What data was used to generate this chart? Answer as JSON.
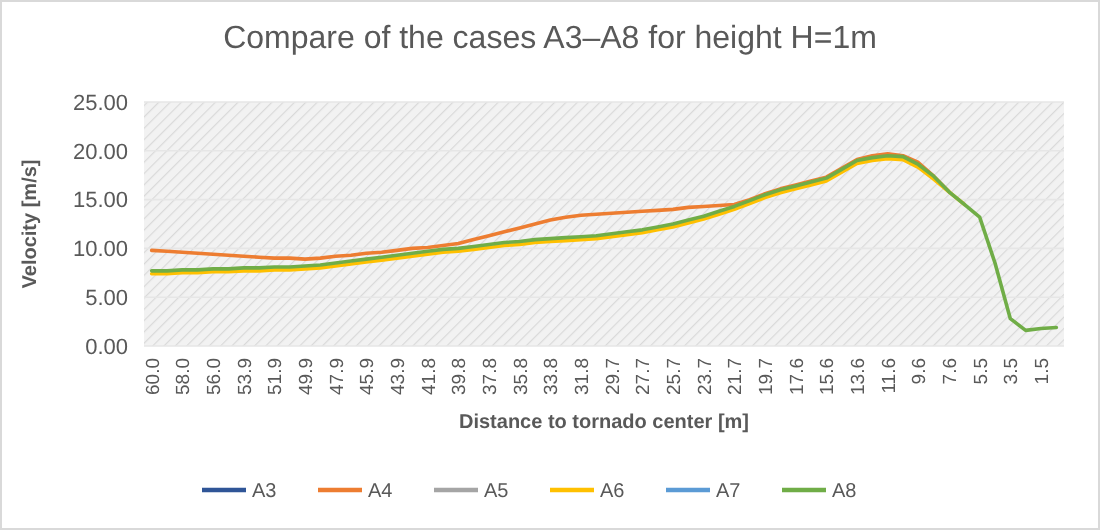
{
  "chart_data": {
    "type": "line",
    "title": "Compare of the cases A3–A8 for height H=1m",
    "xlabel": "Distance to tornado center [m]",
    "ylabel": "Velocity [m/s]",
    "categories": [
      "60.0",
      null,
      "58.0",
      null,
      "56.0",
      null,
      "53.9",
      null,
      "51.9",
      null,
      "49.9",
      null,
      "47.9",
      null,
      "45.9",
      null,
      "43.9",
      null,
      "41.8",
      null,
      "39.8",
      null,
      "37.8",
      null,
      "35.8",
      null,
      "33.8",
      null,
      "31.8",
      null,
      "29.7",
      null,
      "27.7",
      null,
      "25.7",
      null,
      "23.7",
      null,
      "21.7",
      null,
      "19.7",
      null,
      "17.6",
      null,
      "15.6",
      null,
      "13.6",
      null,
      "11.6",
      null,
      "9.6",
      null,
      "7.6",
      null,
      "5.5",
      null,
      "3.5",
      null,
      "1.5",
      null
    ],
    "series": [
      {
        "name": "A3",
        "color": "#2f5597",
        "values": [
          null,
          null,
          null,
          null,
          null,
          null,
          null,
          null,
          null,
          null,
          null,
          null,
          null,
          null,
          null,
          null,
          null,
          null,
          null,
          null,
          null,
          null,
          null,
          null,
          null,
          null,
          null,
          null,
          null,
          null,
          null,
          null,
          null,
          null,
          null,
          null,
          null,
          null,
          null,
          null,
          null,
          null,
          null,
          null,
          null,
          null,
          null,
          null,
          null,
          null,
          null,
          null,
          null,
          null,
          null,
          null,
          null,
          null,
          null,
          null
        ]
      },
      {
        "name": "A4",
        "color": "#ed7d31",
        "values": [
          9.8,
          9.7,
          9.6,
          9.5,
          9.4,
          9.3,
          9.2,
          9.1,
          9.0,
          9.0,
          8.9,
          9.0,
          9.2,
          9.3,
          9.5,
          9.6,
          9.8,
          10.0,
          10.1,
          10.3,
          10.5,
          10.9,
          11.3,
          11.7,
          12.1,
          12.5,
          12.9,
          13.2,
          13.4,
          13.5,
          13.6,
          13.7,
          13.8,
          13.9,
          14.0,
          14.2,
          14.3,
          14.4,
          14.5,
          15.0,
          15.6,
          16.1,
          16.5,
          16.9,
          17.3,
          18.2,
          19.1,
          19.5,
          19.7,
          19.5,
          18.8,
          17.4,
          15.8,
          null,
          null,
          null,
          null,
          null,
          null,
          null
        ]
      },
      {
        "name": "A5",
        "color": "#a5a5a5",
        "values": [
          null,
          null,
          null,
          null,
          null,
          null,
          null,
          null,
          null,
          null,
          null,
          null,
          null,
          null,
          null,
          null,
          null,
          null,
          null,
          null,
          null,
          null,
          null,
          null,
          null,
          null,
          null,
          null,
          null,
          null,
          null,
          null,
          null,
          null,
          null,
          null,
          null,
          null,
          null,
          null,
          null,
          null,
          null,
          null,
          null,
          null,
          null,
          null,
          null,
          null,
          null,
          null,
          null,
          null,
          null,
          null,
          null,
          null,
          null,
          null
        ]
      },
      {
        "name": "A6",
        "color": "#ffc000",
        "values": [
          7.4,
          7.4,
          7.5,
          7.5,
          7.6,
          7.6,
          7.7,
          7.7,
          7.8,
          7.8,
          7.9,
          8.0,
          8.2,
          8.4,
          8.6,
          8.8,
          9.0,
          9.2,
          9.4,
          9.6,
          9.7,
          9.9,
          10.1,
          10.3,
          10.4,
          10.6,
          10.7,
          10.8,
          10.9,
          11.0,
          11.2,
          11.4,
          11.6,
          11.9,
          12.2,
          12.6,
          13.0,
          13.5,
          14.0,
          14.6,
          15.2,
          15.7,
          16.1,
          16.5,
          16.9,
          17.8,
          18.7,
          19.0,
          19.2,
          19.1,
          18.3,
          17.1,
          15.8,
          14.5,
          null,
          null,
          null,
          null,
          null,
          null
        ]
      },
      {
        "name": "A7",
        "color": "#5b9bd5",
        "values": [
          null,
          null,
          null,
          null,
          null,
          null,
          null,
          null,
          null,
          null,
          null,
          null,
          null,
          null,
          null,
          null,
          null,
          null,
          null,
          null,
          null,
          null,
          null,
          null,
          null,
          null,
          null,
          null,
          null,
          null,
          null,
          null,
          null,
          null,
          null,
          null,
          null,
          null,
          null,
          null,
          null,
          null,
          null,
          null,
          null,
          null,
          null,
          null,
          null,
          null,
          null,
          null,
          null,
          null,
          null,
          null,
          null,
          null,
          null,
          null
        ]
      },
      {
        "name": "A8",
        "color": "#70ad47",
        "values": [
          7.7,
          7.7,
          7.8,
          7.8,
          7.9,
          7.9,
          8.0,
          8.0,
          8.1,
          8.1,
          8.2,
          8.3,
          8.5,
          8.7,
          8.9,
          9.1,
          9.3,
          9.5,
          9.7,
          9.9,
          10.0,
          10.2,
          10.4,
          10.6,
          10.7,
          10.9,
          11.0,
          11.1,
          11.2,
          11.3,
          11.5,
          11.7,
          11.9,
          12.2,
          12.5,
          12.9,
          13.3,
          13.8,
          14.3,
          14.9,
          15.5,
          16.0,
          16.4,
          16.8,
          17.2,
          18.1,
          19.0,
          19.3,
          19.5,
          19.4,
          18.6,
          17.4,
          15.8,
          14.5,
          13.2,
          8.5,
          2.8,
          1.6,
          1.8,
          1.9
        ]
      }
    ],
    "ylim": [
      0,
      25
    ],
    "yticks": [
      {
        "value": 0,
        "label": "0.00"
      },
      {
        "value": 5,
        "label": "5.00"
      },
      {
        "value": 10,
        "label": "10.00"
      },
      {
        "value": 15,
        "label": "15.00"
      },
      {
        "value": 20,
        "label": "20.00"
      },
      {
        "value": 25,
        "label": "25.00"
      }
    ],
    "grid": "y",
    "legend": "bottom",
    "marker": "none",
    "line_style": "solid"
  }
}
